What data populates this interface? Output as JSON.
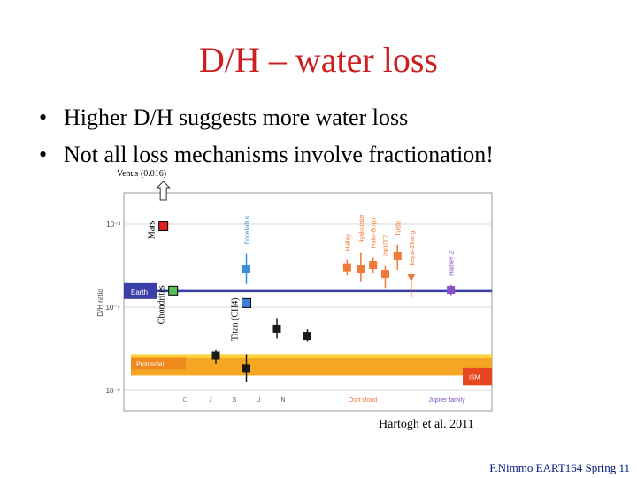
{
  "slide": {
    "title": "D/H – water loss",
    "bullets": [
      "Higher D/H suggests more water loss",
      "Not all loss mechanisms involve fractionation!"
    ],
    "citation": "Hartogh et al. 2011",
    "footer": "F.Nimmo EART164 Spring 11"
  },
  "chart_data": {
    "type": "scatter",
    "title": "",
    "ylabel": "D/H ratio",
    "yscale": "log",
    "ylim": [
      1e-05,
      0.001
    ],
    "y_ticks": [
      {
        "value": 0.001,
        "label": "10⁻³"
      },
      {
        "value": 0.0001,
        "label": "10⁻⁴"
      },
      {
        "value": 1e-05,
        "label": "10⁻⁵"
      }
    ],
    "grid": true,
    "categories": [
      "CI",
      "J",
      "S",
      "U",
      "N",
      "Oort cloud",
      "Jupiter family"
    ],
    "reference_bands": [
      {
        "name": "Earth",
        "value": 0.000156,
        "color": "#3a3fa8"
      },
      {
        "name": "Protosolar",
        "y_range": [
          1.5e-05,
          2.7e-05
        ],
        "color": "#f5a623"
      },
      {
        "name": "ISM",
        "y_range": [
          1.15e-05,
          1.85e-05
        ],
        "color": "#e8461f"
      }
    ],
    "points": [
      {
        "name": "Chondrites",
        "group": "CI",
        "x": 0.6,
        "y": 0.000158,
        "color": "#55c055",
        "marker": "square",
        "label": "Chondrites",
        "label_style": "slide"
      },
      {
        "name": "Mars",
        "group": "CI",
        "x": 0.28,
        "y": 0.00094,
        "color": "#e02020",
        "marker": "square",
        "label": "Mars",
        "label_style": "slide"
      },
      {
        "name": "Titan (CH4)",
        "group": "S",
        "x": 3.0,
        "y": 0.000112,
        "color": "#3a7fd8",
        "marker": "square",
        "label": "Titan (CH4)",
        "label_style": "slide"
      },
      {
        "name": "Enceladus",
        "group": "S",
        "x": 3.0,
        "y": 0.00029,
        "y_err": [
          0.00019,
          0.00044
        ],
        "color": "#3a8fd8",
        "marker": "square",
        "label": "Enceladus"
      },
      {
        "name": "J",
        "group": "J",
        "x": 2.0,
        "y": 2.6e-05,
        "y_err": [
          2.1e-05,
          3.1e-05
        ],
        "color": "#1a1a1a",
        "marker": "square"
      },
      {
        "name": "S",
        "group": "S",
        "x": 3.0,
        "y": 1.85e-05,
        "y_err": [
          1.25e-05,
          2.7e-05
        ],
        "color": "#1a1a1a",
        "marker": "square"
      },
      {
        "name": "U",
        "group": "U",
        "x": 4.0,
        "y": 5.5e-05,
        "y_err": [
          4.2e-05,
          7.4e-05
        ],
        "color": "#1a1a1a",
        "marker": "square"
      },
      {
        "name": "N",
        "group": "N",
        "x": 5.0,
        "y": 4.5e-05,
        "y_err": [
          3.9e-05,
          5.4e-05
        ],
        "color": "#1a1a1a",
        "marker": "square"
      },
      {
        "name": "Halley",
        "group": "Oort cloud",
        "x": 6.3,
        "y": 0.0003,
        "y_err": [
          0.00024,
          0.00037
        ],
        "color": "#f07838",
        "marker": "square",
        "label": "Halley"
      },
      {
        "name": "Hyakutake",
        "group": "Oort cloud",
        "x": 6.75,
        "y": 0.00029,
        "y_err": [
          0.0002,
          0.00045
        ],
        "color": "#f07838",
        "marker": "square",
        "label": "Hyakutake"
      },
      {
        "name": "Hale–Bopp",
        "group": "Oort cloud",
        "x": 7.15,
        "y": 0.00032,
        "y_err": [
          0.00026,
          0.0004
        ],
        "color": "#f07838",
        "marker": "square",
        "label": "Hale–Bopp"
      },
      {
        "name": "2002T7",
        "group": "Oort cloud",
        "x": 7.55,
        "y": 0.00025,
        "y_err": [
          0.00017,
          0.00032
        ],
        "color": "#f07838",
        "marker": "square",
        "label": "2002T7"
      },
      {
        "name": "Tuttle",
        "group": "Oort cloud",
        "x": 7.95,
        "y": 0.00041,
        "y_err": [
          0.00028,
          0.00056
        ],
        "color": "#f07838",
        "marker": "square",
        "label": "Tuttle"
      },
      {
        "name": "Ikeya–Zhang",
        "group": "Oort cloud",
        "x": 8.4,
        "y": 0.00023,
        "y_err": [
          0.00013,
          0.00024
        ],
        "color": "#f07838",
        "marker": "triangle-down",
        "label": "Ikeya–Zhang"
      },
      {
        "name": "Hartley 2",
        "group": "Jupiter family",
        "x": 9.7,
        "y": 0.000161,
        "y_err": [
          0.000139,
          0.000185
        ],
        "color": "#8a4fc8",
        "marker": "square",
        "label": "Hartley 2"
      }
    ],
    "annotations": [
      {
        "text": "Venus (0.016)",
        "group": "CI",
        "x": 0.28,
        "arrow": "up"
      }
    ]
  }
}
